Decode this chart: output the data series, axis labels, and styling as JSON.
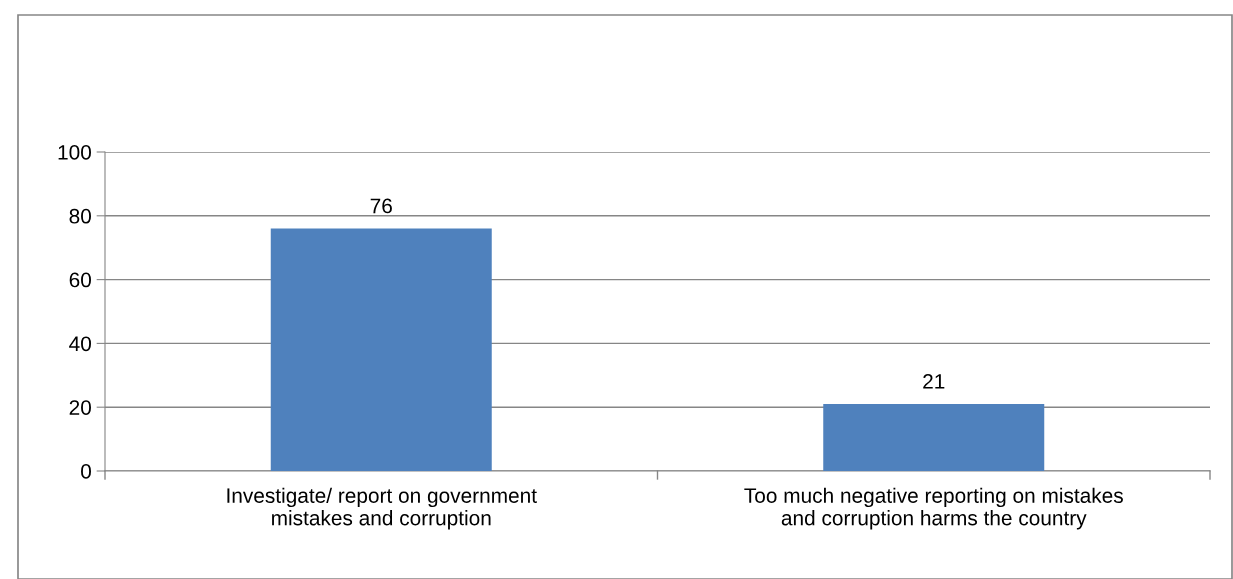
{
  "chart_data": {
    "type": "bar",
    "categories": [
      "Investigate/ report on government\nmistakes and corruption",
      "Too much negative reporting on mistakes\nand corruption harms the country"
    ],
    "values": [
      76,
      21
    ],
    "color": "#4f81bd",
    "data_labels": true,
    "ylim": [
      0,
      100
    ],
    "yticks": [
      0,
      20,
      40,
      60,
      80,
      100
    ],
    "grid": "y"
  }
}
